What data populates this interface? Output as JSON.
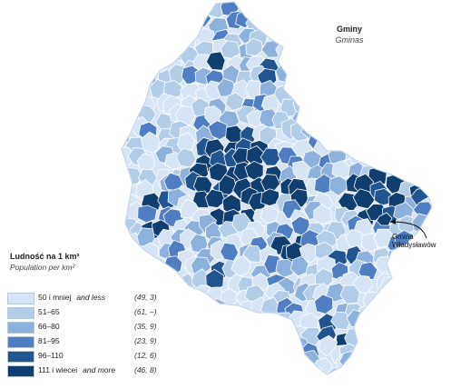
{
  "map": {
    "title": "Gminy",
    "title_en": "Gminas",
    "callout_line1": "Gmina",
    "callout_line2": "Władysławów",
    "colors": {
      "class1": "#d6e4f6",
      "class2": "#b3cde9",
      "class3": "#8db1dd",
      "class4": "#4f7fc2",
      "class5": "#21558f",
      "class6": "#0f3e70",
      "border": "#ffffff"
    }
  },
  "legend": {
    "title": "Ludność na 1 km²",
    "title_en": "Population per km²",
    "items": [
      {
        "range": "50 i mniej",
        "range_en": "and less",
        "count": "(49, 3)",
        "color": "#d6e4f6"
      },
      {
        "range": "51–65",
        "range_en": "",
        "count": "(61, –)",
        "color": "#b3cde9"
      },
      {
        "range": "66–80",
        "range_en": "",
        "count": "(35, 9)",
        "color": "#8db1dd"
      },
      {
        "range": "81–95",
        "range_en": "",
        "count": "(23, 9)",
        "color": "#4f7fc2"
      },
      {
        "range": "96–110",
        "range_en": "",
        "count": "(12, 6)",
        "color": "#21558f"
      },
      {
        "range": "111 i wiecei",
        "range_en": "and more",
        "count": "(46, 8)",
        "color": "#0f3e70"
      }
    ]
  }
}
